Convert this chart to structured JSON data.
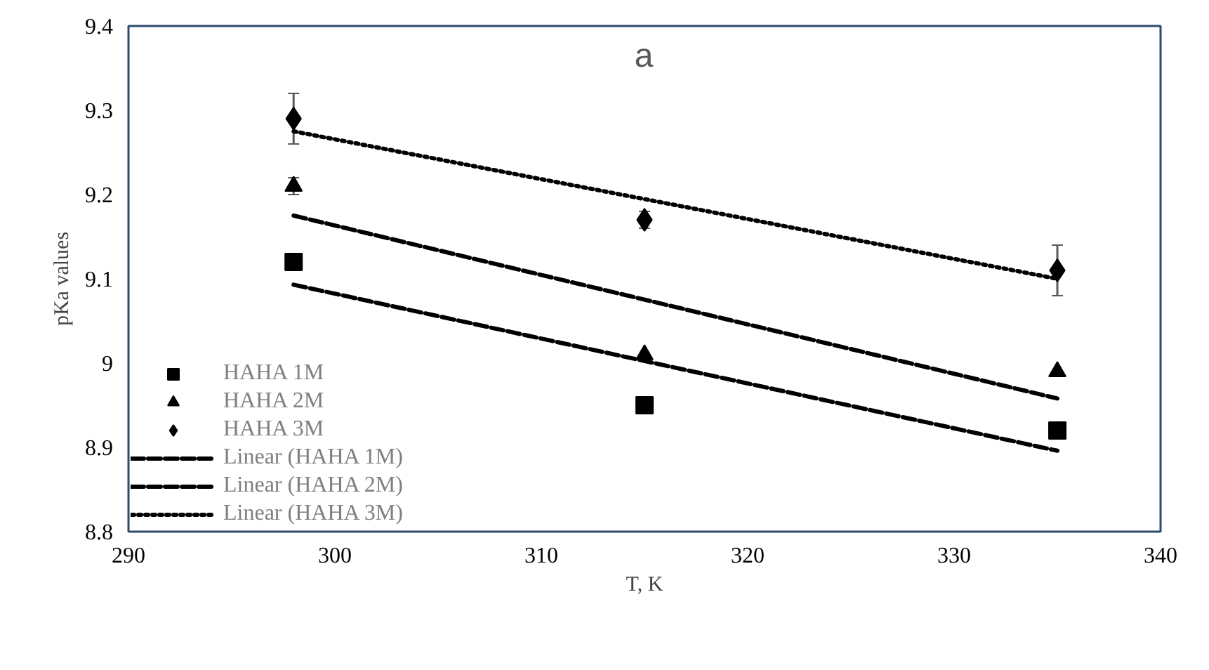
{
  "chart_data": {
    "type": "scatter",
    "title": "a",
    "xlabel": "T, K",
    "ylabel": "pKa values",
    "xlim": [
      290,
      340
    ],
    "xticks": [
      290,
      300,
      310,
      320,
      330,
      340
    ],
    "ylim": [
      8.8,
      9.4
    ],
    "yticks": [
      8.8,
      8.9,
      9,
      9.1,
      9.2,
      9.3,
      9.4
    ],
    "grid": false,
    "legend": "bottom left",
    "series": [
      {
        "name": "HAHA 1M",
        "marker": "square",
        "color": "#000000",
        "x": [
          298,
          315,
          335
        ],
        "values": [
          9.12,
          8.95,
          8.92
        ],
        "errors": [
          null,
          0.01,
          null
        ]
      },
      {
        "name": "HAHA 2M",
        "marker": "triangle",
        "color": "#000000",
        "x": [
          298,
          315,
          335
        ],
        "values": [
          9.21,
          9.01,
          8.99
        ],
        "errors": [
          0.01,
          null,
          null
        ]
      },
      {
        "name": "HAHA 3M",
        "marker": "diamond",
        "color": "#000000",
        "x": [
          298,
          315,
          335
        ],
        "values": [
          9.29,
          9.17,
          9.11
        ],
        "errors": [
          0.03,
          0.01,
          0.03
        ]
      },
      {
        "name": "Linear (HAHA 1M)",
        "type": "line",
        "line_style": "dashed",
        "color": "#000000",
        "x": [
          298,
          335
        ],
        "values": [
          9.093,
          8.896
        ]
      },
      {
        "name": "Linear (HAHA 2M)",
        "type": "line",
        "line_style": "dashed",
        "color": "#000000",
        "x": [
          298,
          335
        ],
        "values": [
          9.175,
          8.958
        ]
      },
      {
        "name": "Linear (HAHA 3M)",
        "type": "line",
        "line_style": "dotted",
        "color": "#000000",
        "x": [
          298,
          335
        ],
        "values": [
          9.275,
          9.1
        ]
      }
    ]
  }
}
